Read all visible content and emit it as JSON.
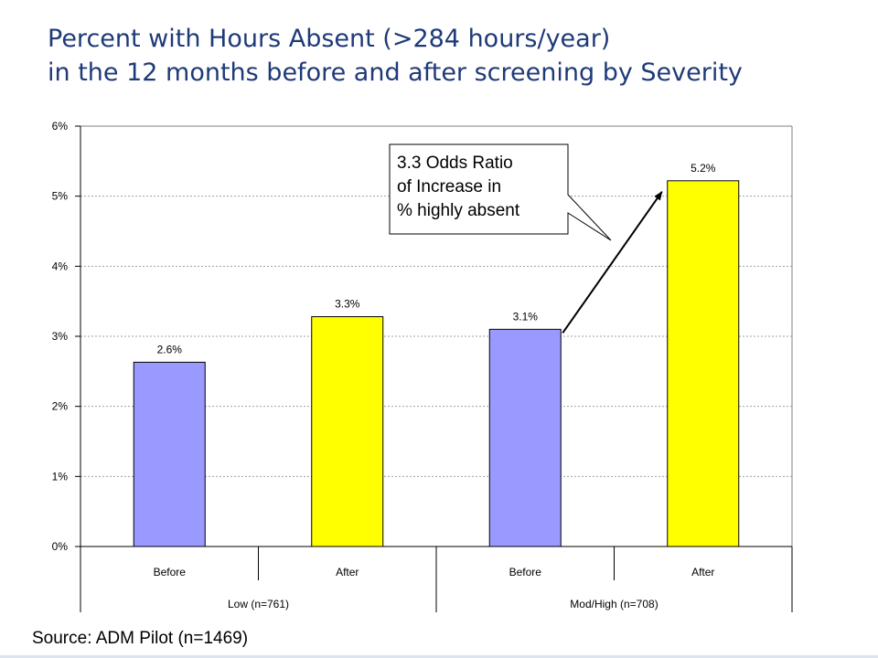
{
  "title": {
    "line1": "Percent with Hours Absent (>284 hours/year)",
    "line2": "in the 12 months before and after screening by Severity"
  },
  "source": "Source: ADM Pilot (n=1469)",
  "colors": {
    "title": "#1f3a78",
    "before": "#9999ff",
    "after": "#ffff00",
    "grid": "#a0a0a0",
    "axis": "#000000"
  },
  "chart_data": {
    "type": "bar",
    "categories": [
      "Before",
      "After",
      "Before",
      "After"
    ],
    "groups": [
      {
        "label": "Low (n=761)",
        "span": 2
      },
      {
        "label": "Mod/High (n=708)",
        "span": 2
      }
    ],
    "values": [
      2.6,
      3.3,
      3.1,
      5.2
    ],
    "plot_values": [
      0.0263,
      0.0328,
      0.031,
      0.0522
    ],
    "data_labels": [
      "2.6%",
      "3.3%",
      "3.1%",
      "5.2%"
    ],
    "ylim": [
      0,
      0.06
    ],
    "yticks": [
      0,
      0.01,
      0.02,
      0.03,
      0.04,
      0.05,
      0.06
    ],
    "ytick_labels": [
      "0%",
      "1%",
      "2%",
      "3%",
      "4%",
      "5%",
      "6%"
    ],
    "grid": true,
    "legend": "none",
    "annotation": {
      "lines": [
        "3.3 Odds Ratio",
        "of Increase in",
        "% highly absent"
      ],
      "arrow_from_category": 2,
      "arrow_to_category": 3
    }
  }
}
